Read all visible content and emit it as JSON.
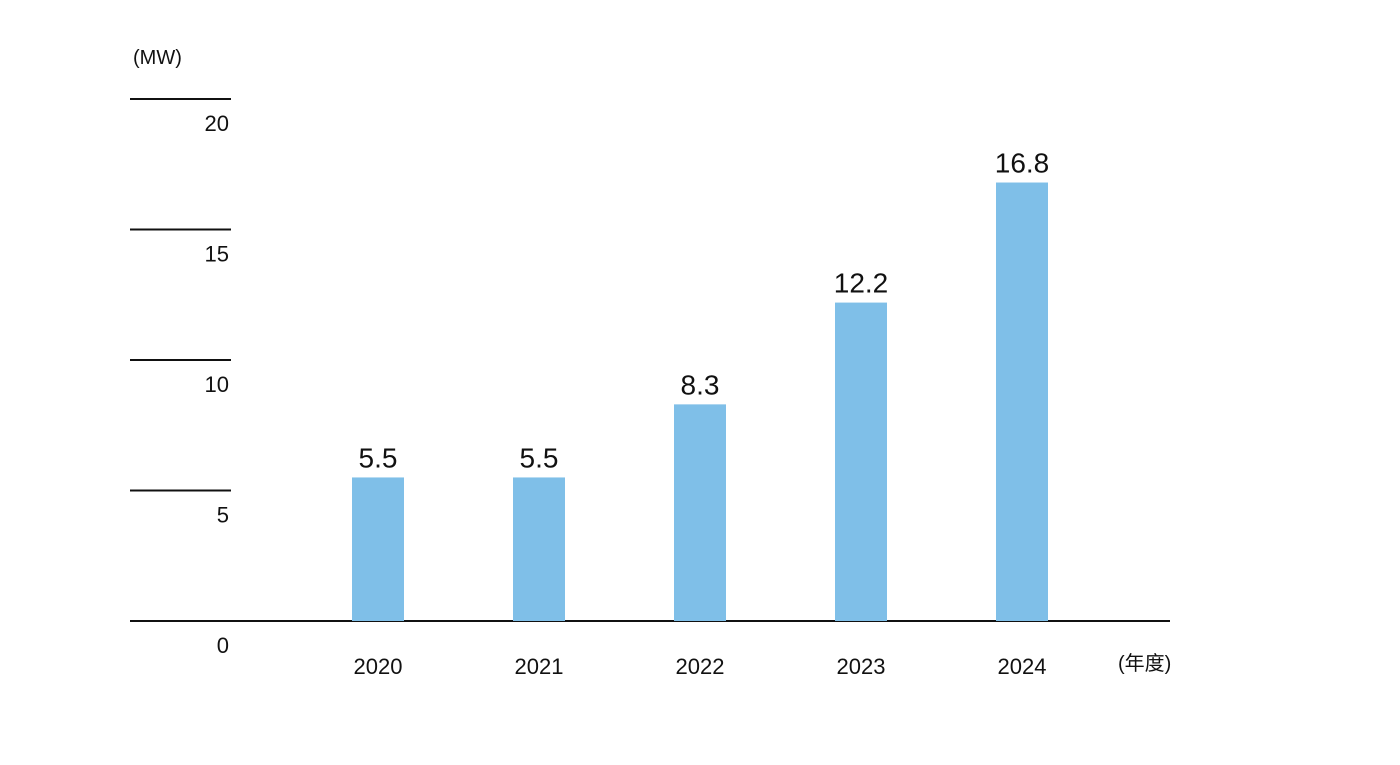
{
  "chart_data": {
    "type": "bar",
    "categories": [
      "2020",
      "2021",
      "2022",
      "2023",
      "2024"
    ],
    "values": [
      5.5,
      5.5,
      8.3,
      12.2,
      16.8
    ],
    "value_labels": [
      "5.5",
      "5.5",
      "8.3",
      "12.2",
      "16.8"
    ],
    "title": "",
    "xlabel": "(年度)",
    "ylabel": "(MW)",
    "ylim": [
      0,
      20
    ],
    "yticks": [
      "0",
      "5",
      "10",
      "15",
      "20"
    ],
    "grid": false,
    "bar_color": "#7fbfe8"
  }
}
